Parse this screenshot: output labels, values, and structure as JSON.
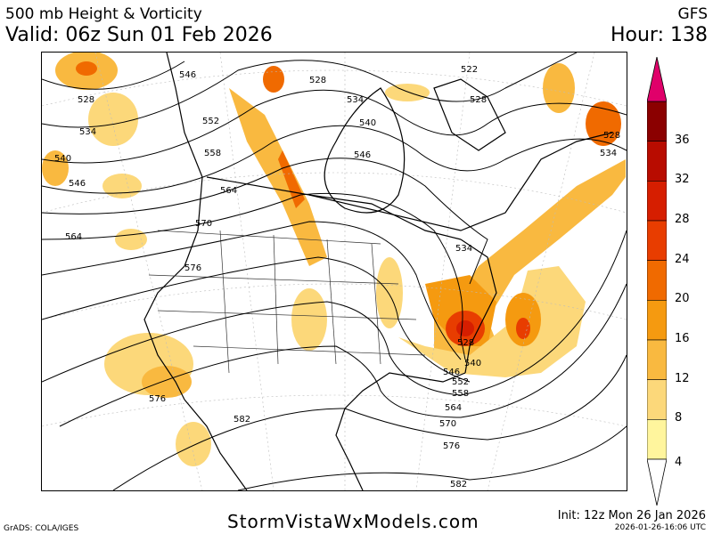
{
  "header": {
    "line1": "500 mb Height & Vorticity",
    "line2": "Valid: 06z Sun 01 Feb 2026",
    "model": "GFS",
    "hour": "Hour: 138"
  },
  "colorbar": {
    "ticks": [
      "36",
      "32",
      "28",
      "24",
      "20",
      "16",
      "12",
      "8",
      "4"
    ],
    "colors": [
      "#fff59d",
      "#fcd87a",
      "#f9b940",
      "#f59a10",
      "#f06a00",
      "#e83d00",
      "#d61e00",
      "#b80c00",
      "#8b0000",
      "#e0006a"
    ]
  },
  "map": {
    "contour_labels": [
      "522",
      "528",
      "534",
      "540",
      "546",
      "552",
      "558",
      "564",
      "570",
      "576",
      "582"
    ]
  },
  "footer": {
    "site": "StormVistaWxModels.com",
    "init": "Init: 12z Mon 26 Jan 2026",
    "stamp": "2026-01-26-16:06 UTC",
    "grads": "GrADS: COLA/IGES"
  }
}
